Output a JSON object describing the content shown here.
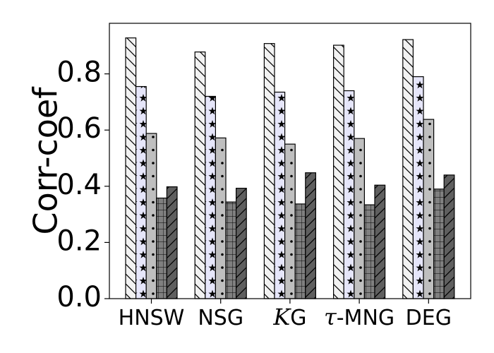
{
  "chart_data": {
    "type": "bar",
    "title": "",
    "xlabel": "",
    "ylabel": "Corr-coef",
    "ylim": [
      0,
      0.98
    ],
    "yticks": [
      "0.0",
      "0.2",
      "0.4",
      "0.6",
      "0.8"
    ],
    "grid": false,
    "categories": [
      {
        "lead": "",
        "italic": "",
        "tail": "HNSW"
      },
      {
        "lead": "",
        "italic": "",
        "tail": "NSG"
      },
      {
        "lead": "",
        "italic": "K",
        "tail": "G"
      },
      {
        "lead": "",
        "italic": "τ",
        "tail": "-MNG"
      },
      {
        "lead": "",
        "italic": "",
        "tail": "DEG"
      }
    ],
    "series": [
      {
        "values": [
          0.928,
          0.878,
          0.908,
          0.902,
          0.922
        ],
        "color": "#f2f2f2",
        "pattern": "backslash"
      },
      {
        "values": [
          0.755,
          0.72,
          0.735,
          0.74,
          0.79
        ],
        "color": "#e6e6fa",
        "pattern": "star"
      },
      {
        "values": [
          0.588,
          0.572,
          0.55,
          0.57,
          0.638
        ],
        "color": "#bfbfbf",
        "pattern": "dot"
      },
      {
        "values": [
          0.358,
          0.344,
          0.337,
          0.334,
          0.39
        ],
        "color": "#808080",
        "pattern": "grid"
      },
      {
        "values": [
          0.398,
          0.393,
          0.448,
          0.404,
          0.44
        ],
        "color": "#5f5f5f",
        "pattern": "slash"
      }
    ]
  }
}
